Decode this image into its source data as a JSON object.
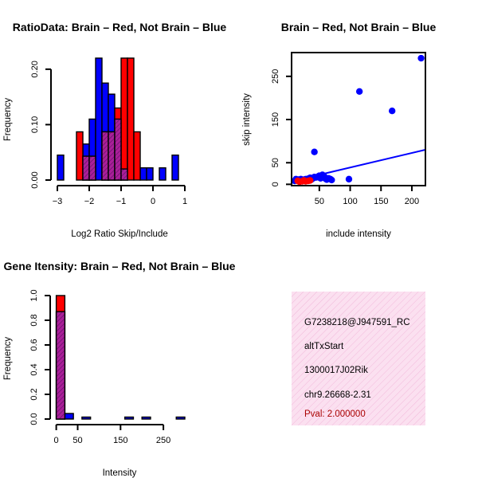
{
  "colors": {
    "brain": "#ff0000",
    "not_brain": "#0000ff",
    "overlap": "#aa1f99",
    "axis": "#000000",
    "info_bg": "#fbe0f0",
    "pval": "#aa0000"
  },
  "chart_data": [
    {
      "id": "ratio_hist",
      "type": "bar",
      "title": "RatioData: Brain – Red, Not Brain – Blue",
      "xlabel": "Log2 Ratio Skip/Include",
      "ylabel": "Frequency",
      "xlim": [
        -3.05,
        1.0
      ],
      "ylim": [
        0,
        0.23
      ],
      "xticks": [
        -3,
        -2,
        -1,
        0,
        1
      ],
      "xtick_labels": [
        "−3",
        "−2",
        "−1",
        "0",
        "1"
      ],
      "yticks": [
        0.0,
        0.1,
        0.2
      ],
      "ytick_labels": [
        "0.00",
        "0.10",
        "0.20"
      ],
      "bin_width": 0.2,
      "series": [
        {
          "name": "Not Brain",
          "bins": [
            {
              "x0": -3.0,
              "v": 0.045
            },
            {
              "x0": -2.2,
              "v": 0.065
            },
            {
              "x0": -2.0,
              "v": 0.11
            },
            {
              "x0": -1.8,
              "v": 0.22
            },
            {
              "x0": -1.6,
              "v": 0.175
            },
            {
              "x0": -1.4,
              "v": 0.155
            },
            {
              "x0": -1.2,
              "v": 0.11
            },
            {
              "x0": -1.0,
              "v": 0.02
            },
            {
              "x0": -0.4,
              "v": 0.022
            },
            {
              "x0": -0.2,
              "v": 0.022
            },
            {
              "x0": 0.2,
              "v": 0.022
            },
            {
              "x0": 0.6,
              "v": 0.045
            }
          ]
        },
        {
          "name": "Brain",
          "bins": [
            {
              "x0": -2.4,
              "v": 0.087
            },
            {
              "x0": -2.2,
              "v": 0.043
            },
            {
              "x0": -2.0,
              "v": 0.043
            },
            {
              "x0": -1.6,
              "v": 0.087
            },
            {
              "x0": -1.4,
              "v": 0.087
            },
            {
              "x0": -1.2,
              "v": 0.13
            },
            {
              "x0": -1.0,
              "v": 0.22
            },
            {
              "x0": -0.8,
              "v": 0.22
            },
            {
              "x0": -0.6,
              "v": 0.087
            }
          ]
        }
      ]
    },
    {
      "id": "scatter",
      "type": "scatter",
      "title": "Brain – Red, Not Brain – Blue",
      "xlabel": "include intensity",
      "ylabel": "skip intensity",
      "xlim": [
        5,
        222
      ],
      "ylim": [
        -3,
        305
      ],
      "xticks": [
        50,
        100,
        150,
        200
      ],
      "xtick_labels": [
        "50",
        "100",
        "150",
        "200"
      ],
      "yticks": [
        0,
        50,
        150,
        250
      ],
      "ytick_labels": [
        "0",
        "50",
        "150",
        "250"
      ],
      "series": [
        {
          "name": "Not Brain",
          "points": [
            [
              10,
              8
            ],
            [
              12,
              12
            ],
            [
              14,
              10
            ],
            [
              16,
              11
            ],
            [
              18,
              9
            ],
            [
              20,
              12
            ],
            [
              22,
              10
            ],
            [
              25,
              11
            ],
            [
              28,
              12
            ],
            [
              30,
              9
            ],
            [
              32,
              13
            ],
            [
              35,
              15
            ],
            [
              37,
              11
            ],
            [
              40,
              14
            ],
            [
              42,
              17
            ],
            [
              45,
              16
            ],
            [
              48,
              18
            ],
            [
              50,
              20
            ],
            [
              52,
              14
            ],
            [
              55,
              22
            ],
            [
              58,
              18
            ],
            [
              60,
              13
            ],
            [
              62,
              11
            ],
            [
              65,
              14
            ],
            [
              68,
              12
            ],
            [
              70,
              10
            ],
            [
              42,
              75
            ],
            [
              98,
              12
            ],
            [
              115,
              215
            ],
            [
              168,
              170
            ],
            [
              215,
              292
            ]
          ]
        },
        {
          "name": "Brain",
          "points": [
            [
              15,
              8
            ],
            [
              18,
              6
            ],
            [
              22,
              7
            ],
            [
              25,
              9
            ],
            [
              28,
              7
            ],
            [
              32,
              8
            ],
            [
              35,
              9
            ]
          ]
        }
      ],
      "fit_lines": [
        {
          "name": "Not Brain",
          "x": [
            5,
            222
          ],
          "y": [
            7,
            80
          ]
        },
        {
          "name": "Brain",
          "x": [
            10,
            36
          ],
          "y": [
            8,
            10
          ]
        }
      ]
    },
    {
      "id": "intensity_hist",
      "type": "bar",
      "title": "Gene Itensity: Brain – Red, Not Brain – Blue",
      "xlabel": "Intensity",
      "ylabel": "Frequency",
      "xlim": [
        -3,
        300
      ],
      "ylim": [
        0,
        1.0
      ],
      "xticks": [
        0,
        50,
        150,
        250
      ],
      "xtick_labels": [
        "0",
        "50",
        "150",
        "250"
      ],
      "yticks": [
        0.0,
        0.2,
        0.4,
        0.6,
        0.8,
        1.0
      ],
      "ytick_labels": [
        "0.0",
        "0.2",
        "0.4",
        "0.6",
        "0.8",
        "1.0"
      ],
      "bin_width": 20,
      "series": [
        {
          "name": "Not Brain",
          "bins": [
            {
              "x0": 0,
              "v": 0.87
            },
            {
              "x0": 20,
              "v": 0.045
            },
            {
              "x0": 60,
              "v": 0.016
            },
            {
              "x0": 160,
              "v": 0.016
            },
            {
              "x0": 200,
              "v": 0.016
            },
            {
              "x0": 280,
              "v": 0.016
            }
          ]
        },
        {
          "name": "Brain",
          "bins": [
            {
              "x0": 0,
              "v": 1.0
            }
          ]
        }
      ]
    }
  ],
  "info_panel": {
    "line1": "G7238218@J947591_RC",
    "line2": "altTxStart",
    "line3": "1300017J02Rik",
    "line4": "chr9.26668-2.31",
    "pval": "Pval: 2.000000"
  }
}
